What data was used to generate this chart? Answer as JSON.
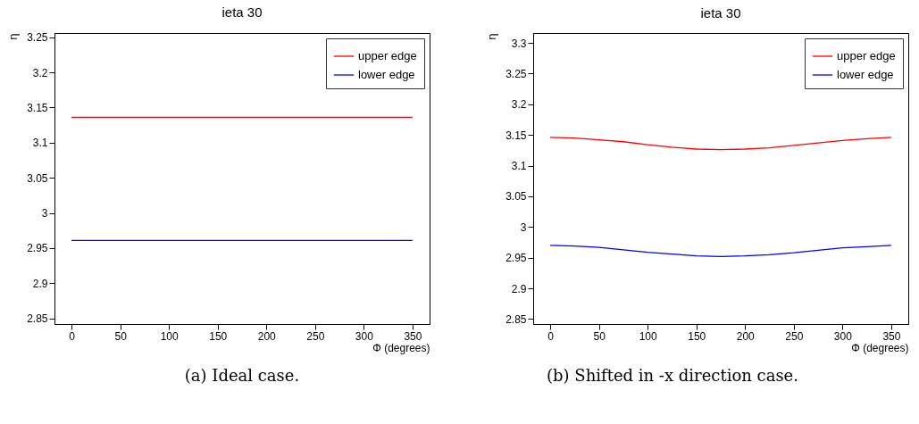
{
  "chart_data": [
    {
      "type": "line",
      "title": "ieta 30",
      "xlabel": "Φ (degrees)",
      "ylabel": "η",
      "xlim": [
        -17.5,
        367.5
      ],
      "ylim": [
        2.842,
        3.256
      ],
      "xticks": [
        0,
        50,
        100,
        150,
        200,
        250,
        300,
        350
      ],
      "yticks": [
        2.85,
        2.9,
        2.95,
        3,
        3.05,
        3.1,
        3.15,
        3.2,
        3.25
      ],
      "grid": false,
      "legend": "top right",
      "annotations": [
        "(a) Ideal case."
      ],
      "series": [
        {
          "name": "upper edge",
          "color": "#ff0000",
          "x": [
            0,
            350
          ],
          "values": [
            3.136,
            3.136
          ]
        },
        {
          "name": "lower edge",
          "color": "#0000ff",
          "x": [
            0,
            350
          ],
          "values": [
            2.961,
            2.961
          ]
        }
      ]
    },
    {
      "type": "line",
      "title": "ieta 30",
      "xlabel": "Φ (degrees)",
      "ylabel": "η",
      "xlim": [
        -17.5,
        367.5
      ],
      "ylim": [
        2.842,
        3.316
      ],
      "xticks": [
        0,
        50,
        100,
        150,
        200,
        250,
        300,
        350
      ],
      "yticks": [
        2.85,
        2.9,
        2.95,
        3,
        3.05,
        3.1,
        3.15,
        3.2,
        3.25,
        3.3
      ],
      "grid": false,
      "legend": "top right",
      "annotations": [
        "(b) Shifted in -x direction case."
      ],
      "series": [
        {
          "name": "upper edge",
          "color": "#ff0000",
          "x": [
            0,
            25,
            50,
            75,
            100,
            125,
            150,
            175,
            200,
            225,
            250,
            275,
            300,
            325,
            350
          ],
          "values": [
            3.146,
            3.145,
            3.142,
            3.139,
            3.134,
            3.13,
            3.127,
            3.126,
            3.127,
            3.129,
            3.133,
            3.137,
            3.141,
            3.144,
            3.146
          ]
        },
        {
          "name": "lower edge",
          "color": "#0000ff",
          "x": [
            0,
            25,
            50,
            75,
            100,
            125,
            150,
            175,
            200,
            225,
            250,
            275,
            300,
            325,
            350
          ],
          "values": [
            2.97,
            2.969,
            2.967,
            2.963,
            2.959,
            2.956,
            2.953,
            2.952,
            2.953,
            2.955,
            2.958,
            2.962,
            2.966,
            2.968,
            2.97
          ]
        }
      ]
    }
  ]
}
